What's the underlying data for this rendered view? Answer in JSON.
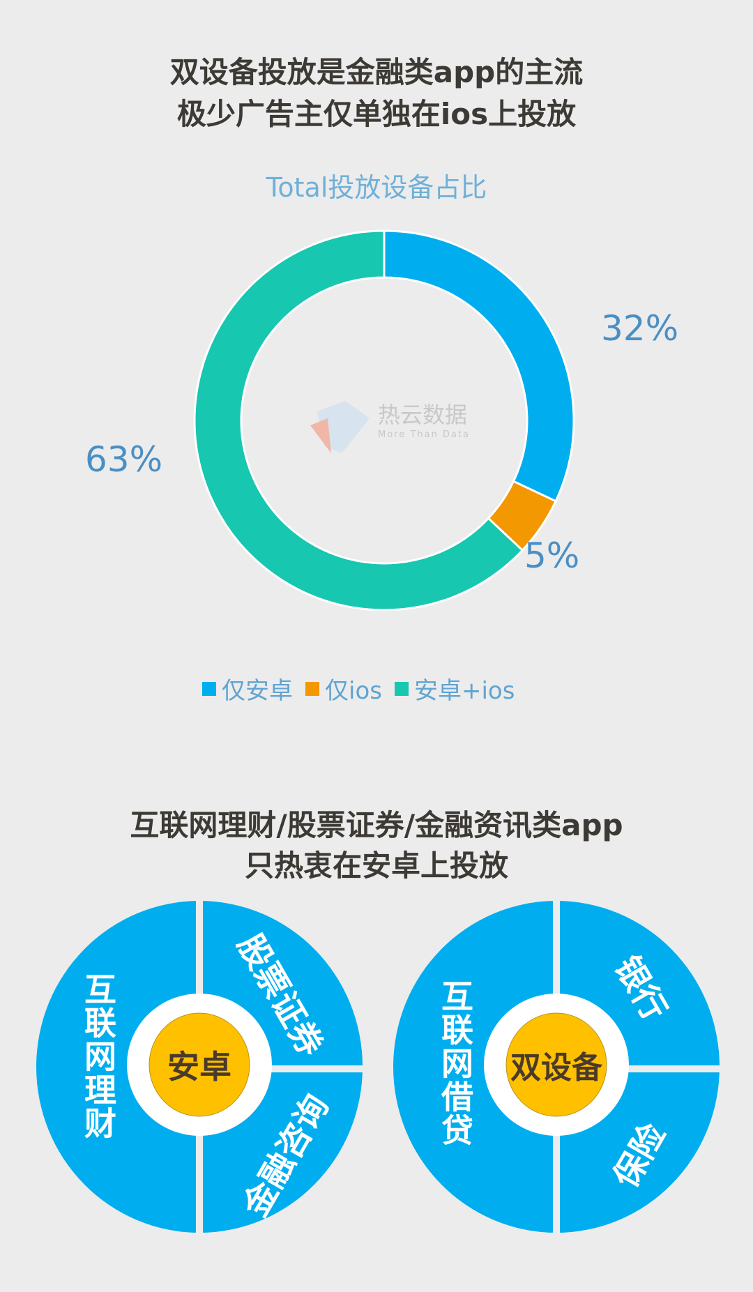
{
  "header": {
    "line1": "双设备投放是金融类app的主流",
    "line2": "极少广告主仅单独在ios上投放"
  },
  "watermark": {
    "name": "热云数据",
    "slogan": "More Than Data"
  },
  "chart_data": {
    "type": "pie",
    "title": "Total投放设备占比",
    "categories": [
      "仅安卓",
      "仅ios",
      "安卓+ios"
    ],
    "values": [
      32,
      5,
      63
    ],
    "labels": [
      "32%",
      "5%",
      "63%"
    ],
    "colors": [
      "#00aeef",
      "#f39800",
      "#17c7b0"
    ],
    "legend": "bottom"
  },
  "section2": {
    "line1": "互联网理财/股票证券/金融资讯类app",
    "line2": "只热衷在安卓上投放"
  },
  "diagram_left": {
    "center": "安卓",
    "left": "互联网理财",
    "top_right": "股票证券",
    "bottom_right": "金融咨询"
  },
  "diagram_right": {
    "center": "双设备",
    "left": "互联网借贷",
    "top_right": "银行",
    "bottom_right": "保险"
  },
  "colors": {
    "blue": "#00aeef",
    "yellow": "#ffc000",
    "bg": "#ececec"
  }
}
